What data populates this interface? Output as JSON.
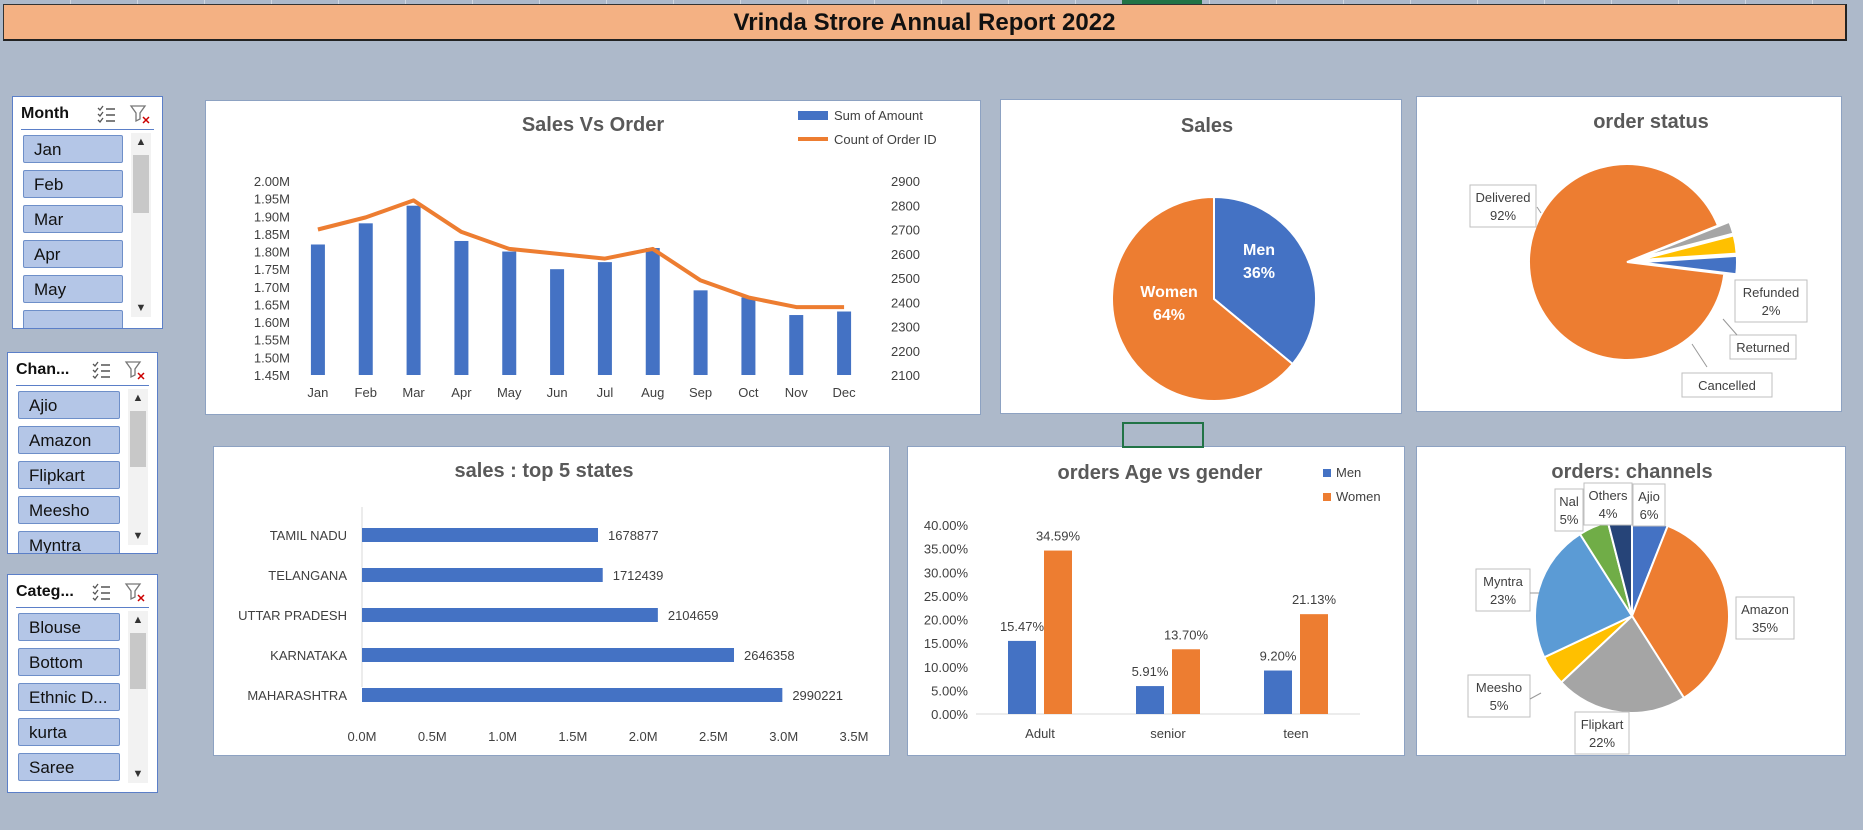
{
  "report_title": "Vrinda Strore Annual Report 2022",
  "colors": {
    "blue": "#4472c4",
    "orange": "#ed7d31",
    "gray": "#a5a5a5",
    "yellow": "#ffc000",
    "lightblue": "#5b9bd5",
    "green": "#70ad47",
    "navy": "#264478",
    "slicer_fill": "#b4c6e7",
    "title_bar": "#f4b183"
  },
  "slicers": {
    "month": {
      "title": "Month",
      "items": [
        "Jan",
        "Feb",
        "Mar",
        "Apr",
        "May"
      ],
      "icons": [
        "multi-select-icon",
        "clear-filter-icon"
      ]
    },
    "channel": {
      "title": "Chan...",
      "items": [
        "Ajio",
        "Amazon",
        "Flipkart",
        "Meesho",
        "Myntra"
      ],
      "icons": [
        "multi-select-icon",
        "clear-filter-icon"
      ]
    },
    "category": {
      "title": "Categ...",
      "items": [
        "Blouse",
        "Bottom",
        "Ethnic D...",
        "kurta",
        "Saree"
      ],
      "icons": [
        "multi-select-icon",
        "clear-filter-icon"
      ]
    }
  },
  "chart_data": [
    {
      "id": "sales-vs-order",
      "type": "bar",
      "title": "Sales Vs Order",
      "categories": [
        "Jan",
        "Feb",
        "Mar",
        "Apr",
        "May",
        "Jun",
        "Jul",
        "Aug",
        "Sep",
        "Oct",
        "Nov",
        "Dec"
      ],
      "series": [
        {
          "name": "Sum of Amount",
          "kind": "bar",
          "axis": "left",
          "values": [
            1.82,
            1.88,
            1.93,
            1.83,
            1.8,
            1.75,
            1.77,
            1.81,
            1.69,
            1.67,
            1.62,
            1.63
          ]
        },
        {
          "name": "Count of Order ID",
          "kind": "line",
          "axis": "right",
          "values": [
            2700,
            2750,
            2820,
            2690,
            2620,
            2600,
            2580,
            2620,
            2490,
            2420,
            2380,
            2380
          ]
        }
      ],
      "y_left": {
        "ylim": [
          1.45,
          2.0
        ],
        "ticks": [
          "2.00M",
          "1.95M",
          "1.90M",
          "1.85M",
          "1.80M",
          "1.75M",
          "1.70M",
          "1.65M",
          "1.60M",
          "1.55M",
          "1.50M",
          "1.45M"
        ]
      },
      "y_right": {
        "ylim": [
          2100,
          2900
        ],
        "ticks": [
          "2900",
          "2800",
          "2700",
          "2600",
          "2500",
          "2400",
          "2300",
          "2200",
          "2100"
        ]
      },
      "legend": "top-right"
    },
    {
      "id": "sales-gender",
      "type": "pie",
      "title": "Sales",
      "slices": [
        {
          "label": "Men",
          "value": 36,
          "pct": "36%"
        },
        {
          "label": "Women",
          "value": 64,
          "pct": "64%"
        }
      ]
    },
    {
      "id": "order-status",
      "type": "pie",
      "title": "order status",
      "slices": [
        {
          "label": "Delivered",
          "value": 92,
          "pct": "92%"
        },
        {
          "label": "Refunded",
          "value": 2,
          "pct": "2%"
        },
        {
          "label": "Returned",
          "value": 3,
          "pct": ""
        },
        {
          "label": "Cancelled",
          "value": 3,
          "pct": ""
        }
      ]
    },
    {
      "id": "top-states",
      "type": "bar",
      "orientation": "horizontal",
      "title": "sales : top 5 states",
      "categories": [
        "TAMIL NADU",
        "TELANGANA",
        "UTTAR PRADESH",
        "KARNATAKA",
        "MAHARASHTRA"
      ],
      "values": [
        1678877,
        1712439,
        2104659,
        2646358,
        2990221
      ],
      "data_labels": [
        "1678877",
        "1712439",
        "2104659",
        "2646358",
        "2990221"
      ],
      "xlim": [
        0,
        3500000
      ],
      "x_ticks": [
        "0.0M",
        "0.5M",
        "1.0M",
        "1.5M",
        "2.0M",
        "2.5M",
        "3.0M",
        "3.5M"
      ]
    },
    {
      "id": "age-gender",
      "type": "bar",
      "title": "orders Age vs gender",
      "categories": [
        "Adult",
        "senior",
        "teen"
      ],
      "series": [
        {
          "name": "Men",
          "values": [
            15.47,
            5.91,
            9.2
          ],
          "labels": [
            "15.47%",
            "5.91%",
            "9.20%"
          ]
        },
        {
          "name": "Women",
          "values": [
            34.59,
            13.7,
            21.13
          ],
          "labels": [
            "34.59%",
            "13.70%",
            "21.13%"
          ]
        }
      ],
      "ylim": [
        0,
        40
      ],
      "y_ticks": [
        "40.00%",
        "35.00%",
        "30.00%",
        "25.00%",
        "20.00%",
        "15.00%",
        "10.00%",
        "5.00%",
        "0.00%"
      ],
      "legend": "top-right"
    },
    {
      "id": "channels",
      "type": "pie",
      "title": "orders: channels",
      "slices": [
        {
          "label": "Ajio",
          "value": 6,
          "pct": "6%"
        },
        {
          "label": "Amazon",
          "value": 35,
          "pct": "35%"
        },
        {
          "label": "Flipkart",
          "value": 22,
          "pct": "22%"
        },
        {
          "label": "Meesho",
          "value": 5,
          "pct": "5%"
        },
        {
          "label": "Myntra",
          "value": 23,
          "pct": "23%"
        },
        {
          "label": "Nalli",
          "value": 5,
          "pct": "5%"
        },
        {
          "label": "Others",
          "value": 4,
          "pct": "4%"
        }
      ]
    }
  ]
}
